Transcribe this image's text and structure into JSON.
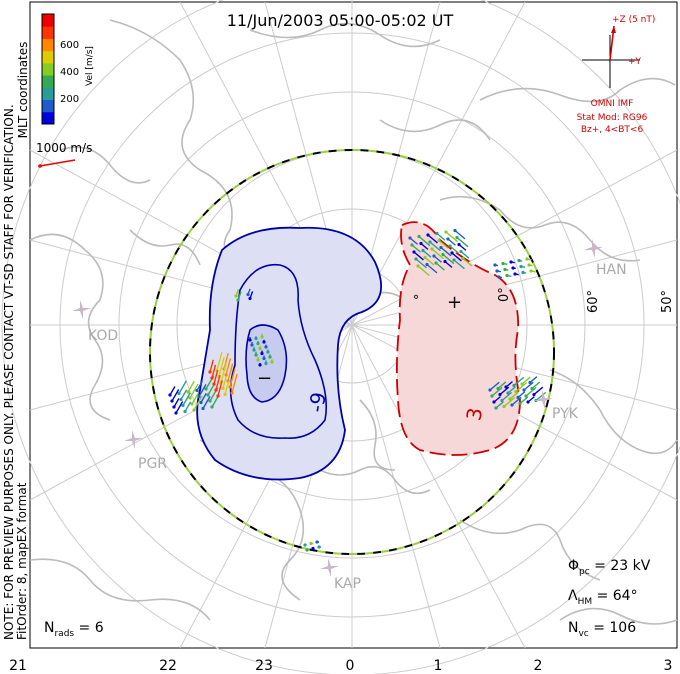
{
  "title": "11/Jun/2003 05:00-05:02 UT",
  "colorbar": {
    "label": "Vel [m/s]",
    "ticks": [
      "600",
      "400",
      "200"
    ],
    "colors": [
      "#0000dd",
      "#1e5ccc",
      "#2a9b9b",
      "#33aa55",
      "#88cc22",
      "#ddcc00",
      "#ff8800",
      "#ff3300",
      "#ee0000"
    ]
  },
  "coords": "MLT coordinates",
  "scale_vector": "1000 m/s",
  "notice": "NOTE: FOR PREVIEW PURPOSES ONLY. PLEASE CONTACT VT-SD STAFF FOR VERIFICATION.",
  "fitorder": "FitOrder: 8, mapEX format",
  "imf": {
    "z_label": "+Z (5 nT)",
    "y_label": "+Y",
    "source": "OMNI IMF",
    "stat_mod": "Stat Mod: RG96",
    "condition": "Bz+, 4<BT<6"
  },
  "stats": {
    "phi_pc": "Φ",
    "phi_sub": "pc",
    "phi_value": " = 23 kV",
    "lambda": "Λ",
    "lambda_sub": "HM",
    "lambda_value": " = 64°",
    "nvc": "N",
    "nvc_sub": "vc",
    "nvc_value": " = 106",
    "nrads": "N",
    "nrads_sub": "rads",
    "nrads_value": " = 6"
  },
  "mlt_labels": [
    "21",
    "22",
    "23",
    "0",
    "1",
    "2",
    "3"
  ],
  "lat_labels": [
    "60°",
    "50°"
  ],
  "partial_lat_labels": [
    "°",
    "0°"
  ],
  "contour_labels": [
    "-9",
    "3"
  ],
  "cell_markers": {
    "min": "−",
    "max": "+"
  },
  "sites": [
    "KOD",
    "PGR",
    "KAP",
    "PYK",
    "HAN"
  ],
  "colors": {
    "negative_contour": "#0000aa",
    "negative_fill": "#dde0f4",
    "positive_contour": "#cc0000",
    "positive_fill": "#f6d8d8",
    "coast": "#bbbbbb",
    "grid": "#cccccc",
    "hmb_dash_a": "#000000",
    "hmb_dash_b": "#9ad040",
    "imf_red": "#d00000"
  }
}
